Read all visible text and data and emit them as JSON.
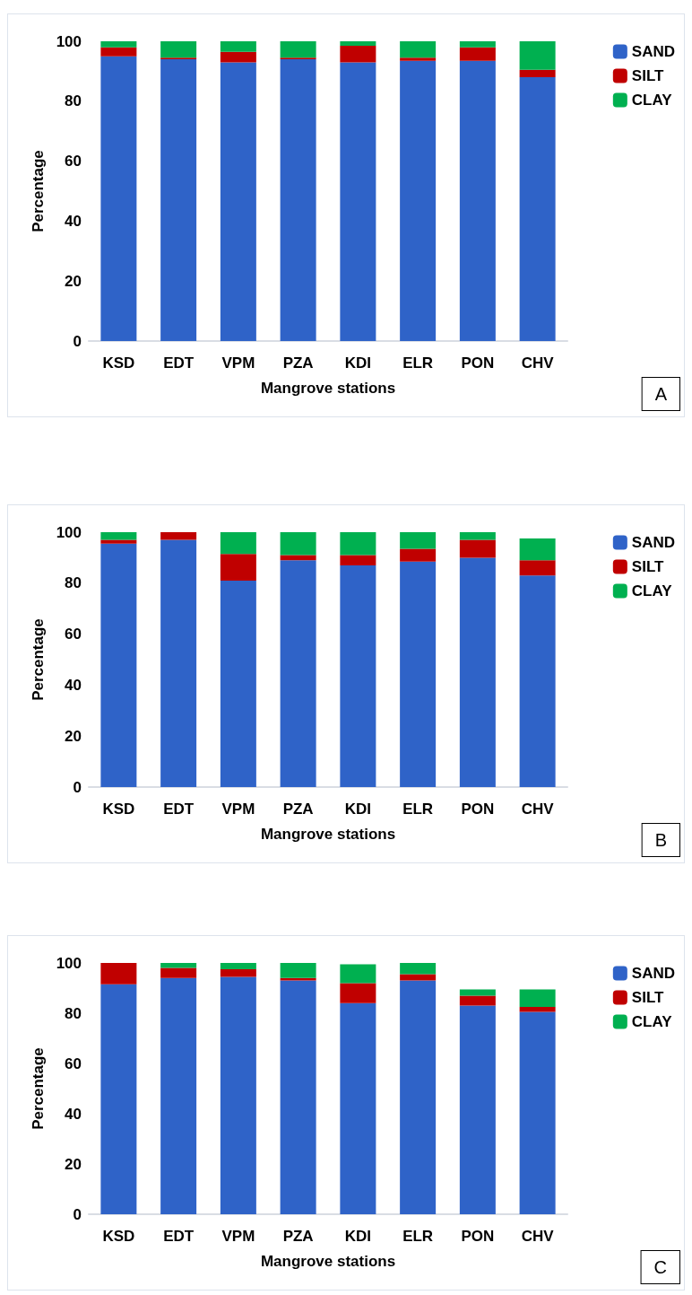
{
  "chart_data": [
    {
      "type": "bar",
      "stacked": true,
      "xlabel": "Mangrove stations",
      "ylabel": "Percentage",
      "categories": [
        "KSD",
        "EDT",
        "VPM",
        "PZA",
        "KDI",
        "ELR",
        "PON",
        "CHV"
      ],
      "series": [
        {
          "name": "SAND",
          "color": "#2f63c8",
          "values": [
            95,
            94,
            93,
            94,
            93,
            93.5,
            93.5,
            88
          ]
        },
        {
          "name": "SILT",
          "color": "#c00000",
          "values": [
            3,
            0.5,
            3.5,
            0.5,
            5.5,
            1,
            4.5,
            2.5
          ]
        },
        {
          "name": "CLAY",
          "color": "#00b050",
          "values": [
            2,
            5.5,
            3.5,
            5.5,
            1.5,
            5.5,
            2,
            9.5
          ]
        }
      ],
      "ylim": [
        0,
        100
      ],
      "yticks": [
        0,
        20,
        40,
        60,
        80,
        100
      ],
      "grid": false,
      "legend": "top right",
      "annotations": [
        "A"
      ]
    },
    {
      "type": "bar",
      "stacked": true,
      "xlabel": "Mangrove stations",
      "ylabel": "Percentage",
      "categories": [
        "KSD",
        "EDT",
        "VPM",
        "PZA",
        "KDI",
        "ELR",
        "PON",
        "CHV"
      ],
      "series": [
        {
          "name": "SAND",
          "color": "#2f63c8",
          "values": [
            95.5,
            97,
            81,
            89,
            87,
            88.5,
            90,
            83
          ]
        },
        {
          "name": "SILT",
          "color": "#c00000",
          "values": [
            1.5,
            3,
            10.5,
            2,
            4,
            5,
            7,
            6
          ]
        },
        {
          "name": "CLAY",
          "color": "#00b050",
          "values": [
            3,
            0,
            8.5,
            9,
            9,
            6.5,
            3,
            8.5
          ]
        }
      ],
      "ylim": [
        0,
        100
      ],
      "yticks": [
        0,
        20,
        40,
        60,
        80,
        100
      ],
      "grid": false,
      "legend": "top right",
      "annotations": [
        "B"
      ]
    },
    {
      "type": "bar",
      "stacked": true,
      "xlabel": "Mangrove stations",
      "ylabel": "Percentage",
      "categories": [
        "KSD",
        "EDT",
        "VPM",
        "PZA",
        "KDI",
        "ELR",
        "PON",
        "CHV"
      ],
      "series": [
        {
          "name": "SAND",
          "color": "#2f63c8",
          "values": [
            91.5,
            94,
            94.5,
            93,
            84,
            93,
            83,
            80.5
          ]
        },
        {
          "name": "SILT",
          "color": "#c00000",
          "values": [
            8.5,
            4,
            3,
            1,
            8,
            2.5,
            4,
            2
          ]
        },
        {
          "name": "CLAY",
          "color": "#00b050",
          "values": [
            0,
            2,
            2.5,
            6,
            7.5,
            4.5,
            2.5,
            7
          ]
        }
      ],
      "ylim": [
        0,
        100
      ],
      "yticks": [
        0,
        20,
        40,
        60,
        80,
        100
      ],
      "grid": false,
      "legend": "top right",
      "annotations": [
        "C"
      ]
    }
  ]
}
